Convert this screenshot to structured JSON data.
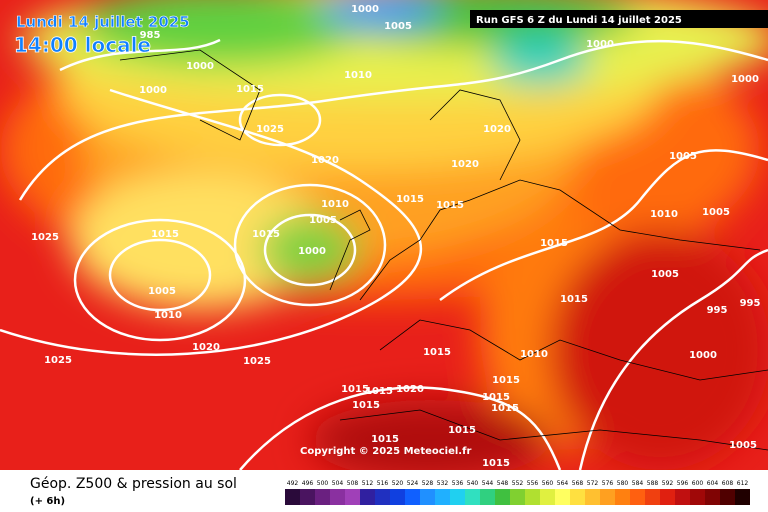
{
  "header": {
    "date": "Lundi 14 juillet 2025",
    "time": "14:00 locale",
    "run": "Run GFS 6 Z du Lundi 14 juillet 2025"
  },
  "isobar_labels": [
    "1000",
    "1005",
    "985",
    "1000",
    "1000",
    "1010",
    "1000",
    "1015",
    "1000",
    "1020",
    "1025",
    "1020",
    "1020",
    "1005",
    "1015",
    "1010",
    "1015",
    "1005",
    "1010",
    "1005",
    "1025",
    "1015",
    "1015",
    "1000",
    "1015",
    "1005",
    "1005",
    "1015",
    "995",
    "995",
    "1010",
    "1020",
    "1015",
    "1010",
    "1000",
    "1025",
    "1025",
    "1015",
    "1015",
    "1020",
    "1015",
    "1015",
    "1015",
    "1015",
    "1015",
    "1015",
    "1005",
    "1015"
  ],
  "copyright": "Copyright © 2025 Meteociel.fr",
  "footer": {
    "title": "Géop. Z500 & pression au sol",
    "subtitle": "(+ 6h)"
  },
  "legend": {
    "labels": [
      492,
      496,
      500,
      504,
      508,
      512,
      516,
      520,
      524,
      528,
      532,
      536,
      540,
      544,
      548,
      552,
      556,
      560,
      564,
      568,
      572,
      576,
      580,
      584,
      588,
      592,
      596,
      600,
      604,
      608,
      612
    ],
    "colors": [
      "#2a0a3a",
      "#4a1460",
      "#6a2080",
      "#8a30a0",
      "#a040b8",
      "#3020a0",
      "#2030c0",
      "#1040e0",
      "#1060ff",
      "#2090ff",
      "#20b0ff",
      "#20d0f0",
      "#30e0c0",
      "#30d080",
      "#40c040",
      "#80d030",
      "#b0e030",
      "#e0f040",
      "#ffff60",
      "#ffe040",
      "#ffc030",
      "#ffa020",
      "#ff8010",
      "#ff6010",
      "#f04010",
      "#e02010",
      "#c01010",
      "#a00808",
      "#800404",
      "#500000",
      "#200000"
    ]
  }
}
